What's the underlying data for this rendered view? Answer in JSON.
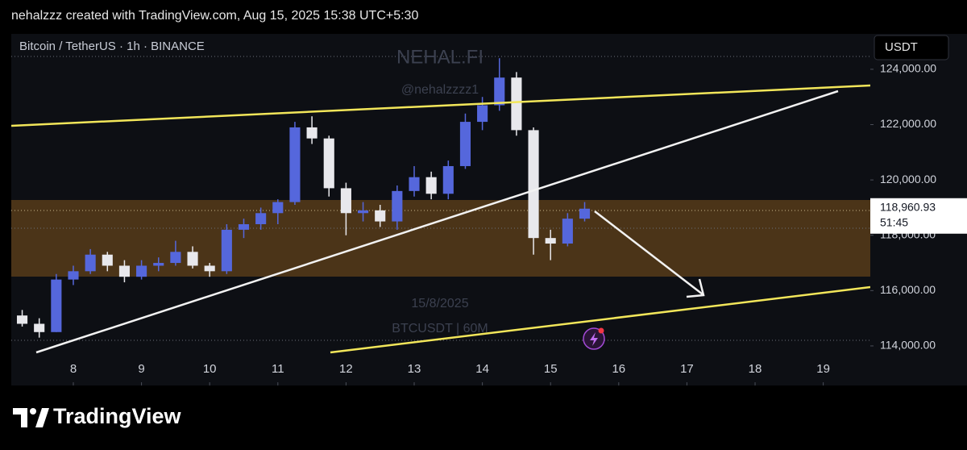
{
  "header": {
    "text": "nehalzzz created with TradingView.com, Aug 15, 2025 15:38 UTC+5:30"
  },
  "chart_data": {
    "type": "candlestick",
    "title": "Bitcoin / TetherUS · 1h · BINANCE",
    "currency_button": "USDT",
    "annotations": [
      "NEHAL.FI",
      "@nehalzzzz1",
      "15/8/2025",
      "BTCUSDT | 60M"
    ],
    "x": [
      7.25,
      7.5,
      7.75,
      8.0,
      8.25,
      8.5,
      8.75,
      9.0,
      9.25,
      9.5,
      9.75,
      10.0,
      10.25,
      10.5,
      10.75,
      11.0,
      11.25,
      11.5,
      11.75,
      12.0,
      12.25,
      12.5,
      12.75,
      13.0,
      13.25,
      13.5,
      13.75,
      14.0,
      14.25,
      14.5,
      14.75,
      15.0,
      15.25,
      15.5
    ],
    "open": [
      115100,
      114800,
      114500,
      116400,
      116700,
      117300,
      116900,
      116500,
      116900,
      117000,
      117400,
      116900,
      116700,
      118200,
      118400,
      118800,
      119200,
      121900,
      121500,
      119700,
      118800,
      118900,
      118500,
      119600,
      120100,
      119500,
      120500,
      122100,
      122700,
      123700,
      121800,
      117900,
      117700,
      118600
    ],
    "high": [
      115300,
      115000,
      116600,
      116900,
      117500,
      117400,
      117100,
      117100,
      117200,
      117800,
      117600,
      117000,
      118400,
      118600,
      119000,
      119300,
      122100,
      122300,
      121600,
      119900,
      119200,
      119100,
      119800,
      120500,
      120300,
      120700,
      122400,
      123000,
      124400,
      123900,
      121900,
      118200,
      118800,
      119200
    ],
    "low": [
      114700,
      114300,
      114500,
      116200,
      116600,
      116700,
      116300,
      116400,
      116700,
      116900,
      116800,
      116500,
      116600,
      117900,
      118200,
      118400,
      119100,
      121300,
      119400,
      118000,
      118500,
      118300,
      118200,
      119400,
      119300,
      119300,
      120400,
      121800,
      122500,
      121600,
      117300,
      117100,
      117600,
      118500
    ],
    "close": [
      114800,
      114500,
      116400,
      116700,
      117300,
      116900,
      116500,
      116900,
      117000,
      117400,
      116900,
      116700,
      118200,
      118400,
      118800,
      119200,
      121900,
      121500,
      119700,
      118800,
      118900,
      118500,
      119600,
      120100,
      119500,
      120500,
      122100,
      122700,
      123700,
      121800,
      117900,
      117700,
      118600,
      118960.93
    ],
    "up_color": "#5567dc",
    "down_color": "#e8e8ec",
    "xlim": [
      7.09,
      19.69
    ],
    "xticks": [
      8,
      9,
      10,
      11,
      12,
      13,
      14,
      15,
      16,
      17,
      18,
      19
    ],
    "ylim": [
      112570,
      125280
    ],
    "yticks": [
      {
        "value": 114000,
        "label": "114,000.00"
      },
      {
        "value": 116000,
        "label": "116,000.00"
      },
      {
        "value": 118000,
        "label": "118,000.00"
      },
      {
        "value": 120000,
        "label": "120,000.00"
      },
      {
        "value": 122000,
        "label": "122,000.00"
      },
      {
        "value": 124000,
        "label": "124,000.00"
      }
    ],
    "last_price": {
      "value": 118960.93,
      "label": "118,960.93"
    },
    "countdown": "51:45"
  },
  "footer": {
    "logo": "TradingView"
  }
}
